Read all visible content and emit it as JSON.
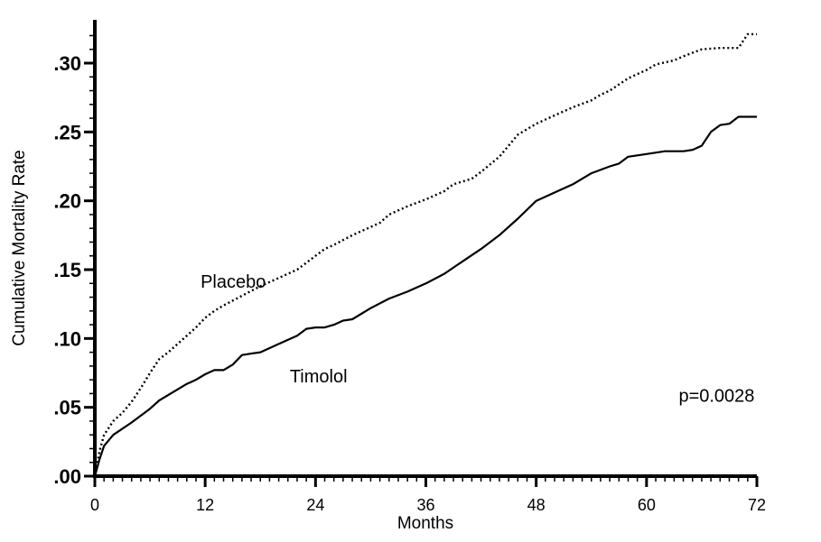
{
  "chart_data": {
    "type": "line",
    "title": "",
    "xlabel": "Months",
    "ylabel": "Cumulative Mortality Rate",
    "xlim": [
      0,
      72
    ],
    "ylim": [
      0,
      0.33
    ],
    "x_ticks": [
      0,
      12,
      24,
      36,
      48,
      60,
      72
    ],
    "x_tick_labels": [
      "0",
      "12",
      "24",
      "36",
      "48",
      "60",
      "72"
    ],
    "y_ticks": [
      0,
      0.05,
      0.1,
      0.15,
      0.2,
      0.25,
      0.3
    ],
    "y_tick_labels": [
      ".00",
      ".05",
      ".10",
      ".15",
      ".20",
      ".25",
      ".30"
    ],
    "grid": false,
    "legend": "none",
    "series": [
      {
        "name": "Placebo",
        "line_style": "dotted",
        "color": "#000000",
        "points": [
          [
            0,
            0.0
          ],
          [
            0.5,
            0.018
          ],
          [
            1,
            0.03
          ],
          [
            2,
            0.04
          ],
          [
            3,
            0.046
          ],
          [
            4,
            0.054
          ],
          [
            5,
            0.064
          ],
          [
            6,
            0.075
          ],
          [
            7,
            0.085
          ],
          [
            8,
            0.09
          ],
          [
            9,
            0.096
          ],
          [
            10,
            0.102
          ],
          [
            11,
            0.108
          ],
          [
            12,
            0.115
          ],
          [
            13,
            0.12
          ],
          [
            14,
            0.124
          ],
          [
            16,
            0.131
          ],
          [
            18,
            0.138
          ],
          [
            20,
            0.144
          ],
          [
            22,
            0.15
          ],
          [
            23,
            0.155
          ],
          [
            24,
            0.16
          ],
          [
            25,
            0.165
          ],
          [
            26,
            0.168
          ],
          [
            28,
            0.175
          ],
          [
            30,
            0.181
          ],
          [
            31,
            0.184
          ],
          [
            32,
            0.19
          ],
          [
            34,
            0.196
          ],
          [
            36,
            0.201
          ],
          [
            38,
            0.207
          ],
          [
            39,
            0.212
          ],
          [
            41,
            0.216
          ],
          [
            42,
            0.221
          ],
          [
            44,
            0.232
          ],
          [
            46,
            0.248
          ],
          [
            48,
            0.256
          ],
          [
            50,
            0.262
          ],
          [
            52,
            0.268
          ],
          [
            54,
            0.273
          ],
          [
            55,
            0.277
          ],
          [
            56,
            0.28
          ],
          [
            58,
            0.289
          ],
          [
            60,
            0.295
          ],
          [
            61,
            0.299
          ],
          [
            63,
            0.302
          ],
          [
            64,
            0.305
          ],
          [
            66,
            0.31
          ],
          [
            68,
            0.311
          ],
          [
            70,
            0.311
          ],
          [
            71,
            0.321
          ],
          [
            72,
            0.321
          ]
        ]
      },
      {
        "name": "Timolol",
        "line_style": "solid",
        "color": "#000000",
        "points": [
          [
            0,
            0.0
          ],
          [
            0.5,
            0.012
          ],
          [
            1,
            0.022
          ],
          [
            2,
            0.03
          ],
          [
            4,
            0.039
          ],
          [
            6,
            0.049
          ],
          [
            7,
            0.055
          ],
          [
            8,
            0.059
          ],
          [
            9,
            0.063
          ],
          [
            10,
            0.067
          ],
          [
            11,
            0.07
          ],
          [
            12,
            0.074
          ],
          [
            13,
            0.077
          ],
          [
            14,
            0.077
          ],
          [
            15,
            0.081
          ],
          [
            16,
            0.088
          ],
          [
            17,
            0.089
          ],
          [
            18,
            0.09
          ],
          [
            20,
            0.096
          ],
          [
            22,
            0.102
          ],
          [
            23,
            0.107
          ],
          [
            24,
            0.108
          ],
          [
            25,
            0.108
          ],
          [
            26,
            0.11
          ],
          [
            27,
            0.113
          ],
          [
            28,
            0.114
          ],
          [
            30,
            0.122
          ],
          [
            32,
            0.129
          ],
          [
            34,
            0.134
          ],
          [
            36,
            0.14
          ],
          [
            38,
            0.147
          ],
          [
            40,
            0.156
          ],
          [
            42,
            0.165
          ],
          [
            44,
            0.175
          ],
          [
            46,
            0.187
          ],
          [
            48,
            0.2
          ],
          [
            50,
            0.206
          ],
          [
            52,
            0.212
          ],
          [
            54,
            0.22
          ],
          [
            56,
            0.225
          ],
          [
            57,
            0.227
          ],
          [
            58,
            0.232
          ],
          [
            60,
            0.234
          ],
          [
            62,
            0.236
          ],
          [
            64,
            0.236
          ],
          [
            65,
            0.237
          ],
          [
            66,
            0.24
          ],
          [
            67,
            0.25
          ],
          [
            68,
            0.255
          ],
          [
            69,
            0.256
          ],
          [
            70,
            0.261
          ],
          [
            72,
            0.261
          ]
        ]
      }
    ],
    "annotations": [
      {
        "text": "Placebo",
        "x": 11.5,
        "y": 0.137,
        "series": "Placebo"
      },
      {
        "text": "Timolol",
        "x": 21.2,
        "y": 0.068,
        "series": "Timolol"
      },
      {
        "text": "p=0.0028",
        "x": 63.5,
        "y": 0.054
      }
    ]
  }
}
